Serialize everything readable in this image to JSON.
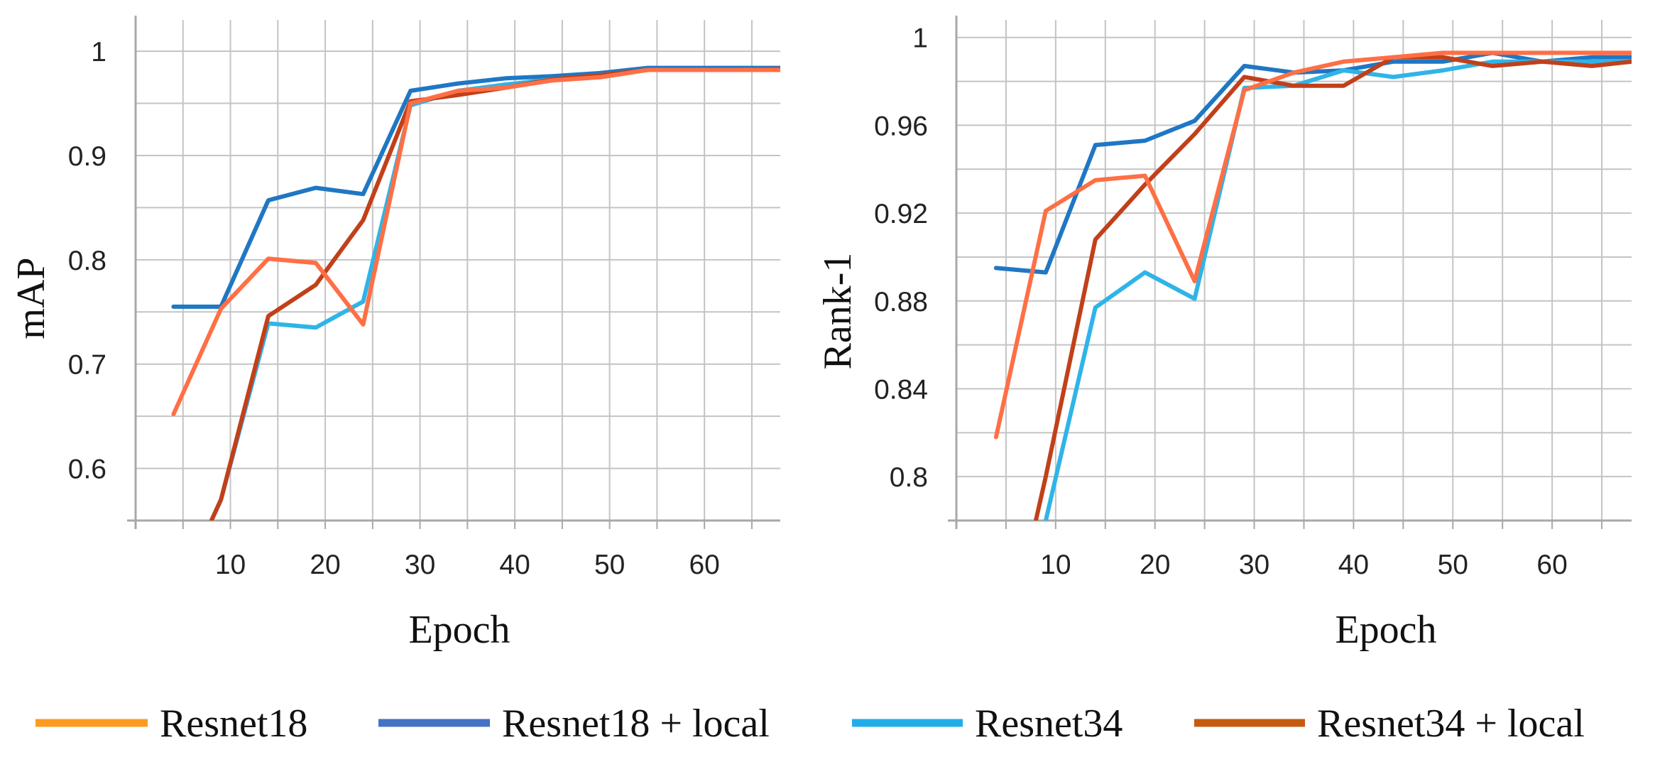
{
  "chart_data": [
    {
      "type": "line",
      "id": "map",
      "title": "",
      "xlabel": "Epoch",
      "ylabel": "mAP",
      "xlim": [
        0,
        68
      ],
      "ylim": [
        0.55,
        1.03
      ],
      "xticks": [
        10,
        20,
        30,
        40,
        50,
        60
      ],
      "yticks": [
        0.6,
        0.7,
        0.8,
        0.9,
        1
      ],
      "ytick_labels": [
        "0.6",
        "0.7",
        "0.8",
        "0.9",
        "1"
      ],
      "grid": true,
      "series": [
        {
          "name": "Resnet18 + local",
          "color": "#1f77c4",
          "x": [
            4,
            9,
            14,
            19,
            24,
            29,
            34,
            39,
            44,
            49,
            54,
            59,
            64,
            68
          ],
          "y": [
            0.755,
            0.755,
            0.857,
            0.869,
            0.863,
            0.962,
            0.969,
            0.974,
            0.976,
            0.979,
            0.984,
            0.984,
            0.984,
            0.984
          ]
        },
        {
          "name": "Resnet34",
          "color": "#2fb4e8",
          "x": [
            8,
            9,
            14,
            19,
            24,
            29,
            34,
            39,
            44,
            49,
            54,
            59,
            64,
            68
          ],
          "y": [
            0.55,
            0.57,
            0.739,
            0.735,
            0.76,
            0.948,
            0.962,
            0.968,
            0.973,
            0.977,
            0.982,
            0.982,
            0.982,
            0.983
          ]
        },
        {
          "name": "Resnet34 + local",
          "color": "#c1401a",
          "x": [
            8,
            9,
            14,
            19,
            24,
            29,
            34,
            39,
            44,
            49,
            54,
            59,
            64,
            68
          ],
          "y": [
            0.55,
            0.57,
            0.746,
            0.776,
            0.838,
            0.952,
            0.958,
            0.965,
            0.973,
            0.977,
            0.982,
            0.982,
            0.982,
            0.983
          ]
        },
        {
          "name": "Resnet18",
          "color": "#ff6f45",
          "x": [
            4,
            9,
            14,
            19,
            24,
            29,
            34,
            39,
            44,
            49,
            54,
            59,
            64,
            68
          ],
          "y": [
            0.652,
            0.753,
            0.801,
            0.797,
            0.738,
            0.95,
            0.962,
            0.965,
            0.972,
            0.975,
            0.982,
            0.982,
            0.982,
            0.982
          ]
        }
      ]
    },
    {
      "type": "line",
      "id": "rank1",
      "title": "",
      "xlabel": "Epoch",
      "ylabel": "Rank-1",
      "xlim": [
        0,
        68
      ],
      "ylim": [
        0.78,
        1.008
      ],
      "xticks": [
        10,
        20,
        30,
        40,
        50,
        60
      ],
      "yticks": [
        0.8,
        0.84,
        0.88,
        0.92,
        0.96,
        1
      ],
      "ytick_labels": [
        "0.8",
        "0.84",
        "0.88",
        "0.92",
        "0.96",
        "1"
      ],
      "grid": true,
      "series": [
        {
          "name": "Resnet18 + local",
          "color": "#1f77c4",
          "x": [
            4,
            9,
            14,
            19,
            24,
            29,
            34,
            39,
            44,
            49,
            54,
            59,
            64,
            68
          ],
          "y": [
            0.895,
            0.893,
            0.951,
            0.953,
            0.962,
            0.987,
            0.984,
            0.985,
            0.989,
            0.989,
            0.993,
            0.989,
            0.991,
            0.991
          ]
        },
        {
          "name": "Resnet34",
          "color": "#2fb4e8",
          "x": [
            9,
            14,
            19,
            24,
            29,
            34,
            39,
            44,
            49,
            54,
            59,
            64,
            68
          ],
          "y": [
            0.78,
            0.877,
            0.893,
            0.881,
            0.977,
            0.978,
            0.985,
            0.982,
            0.985,
            0.989,
            0.989,
            0.989,
            0.989
          ]
        },
        {
          "name": "Resnet34 + local",
          "color": "#c1401a",
          "x": [
            8,
            9,
            14,
            19,
            24,
            29,
            34,
            39,
            44,
            49,
            54,
            59,
            64,
            68
          ],
          "y": [
            0.78,
            0.8,
            0.908,
            0.933,
            0.956,
            0.982,
            0.978,
            0.978,
            0.991,
            0.991,
            0.987,
            0.989,
            0.987,
            0.989
          ]
        },
        {
          "name": "Resnet18",
          "color": "#ff6f45",
          "x": [
            4,
            9,
            14,
            19,
            24,
            29,
            34,
            39,
            44,
            49,
            54,
            59,
            64,
            68
          ],
          "y": [
            0.818,
            0.921,
            0.935,
            0.937,
            0.889,
            0.976,
            0.984,
            0.989,
            0.991,
            0.993,
            0.993,
            0.993,
            0.993,
            0.993
          ]
        }
      ]
    }
  ],
  "legend": {
    "position": "bottom",
    "items": [
      {
        "label": "Resnet18",
        "color": "#ff9a1f"
      },
      {
        "label": "Resnet18 + local",
        "color": "#4472c4"
      },
      {
        "label": "Resnet34",
        "color": "#21aee8"
      },
      {
        "label": "Resnet34 + local",
        "color": "#c55a11"
      }
    ]
  }
}
